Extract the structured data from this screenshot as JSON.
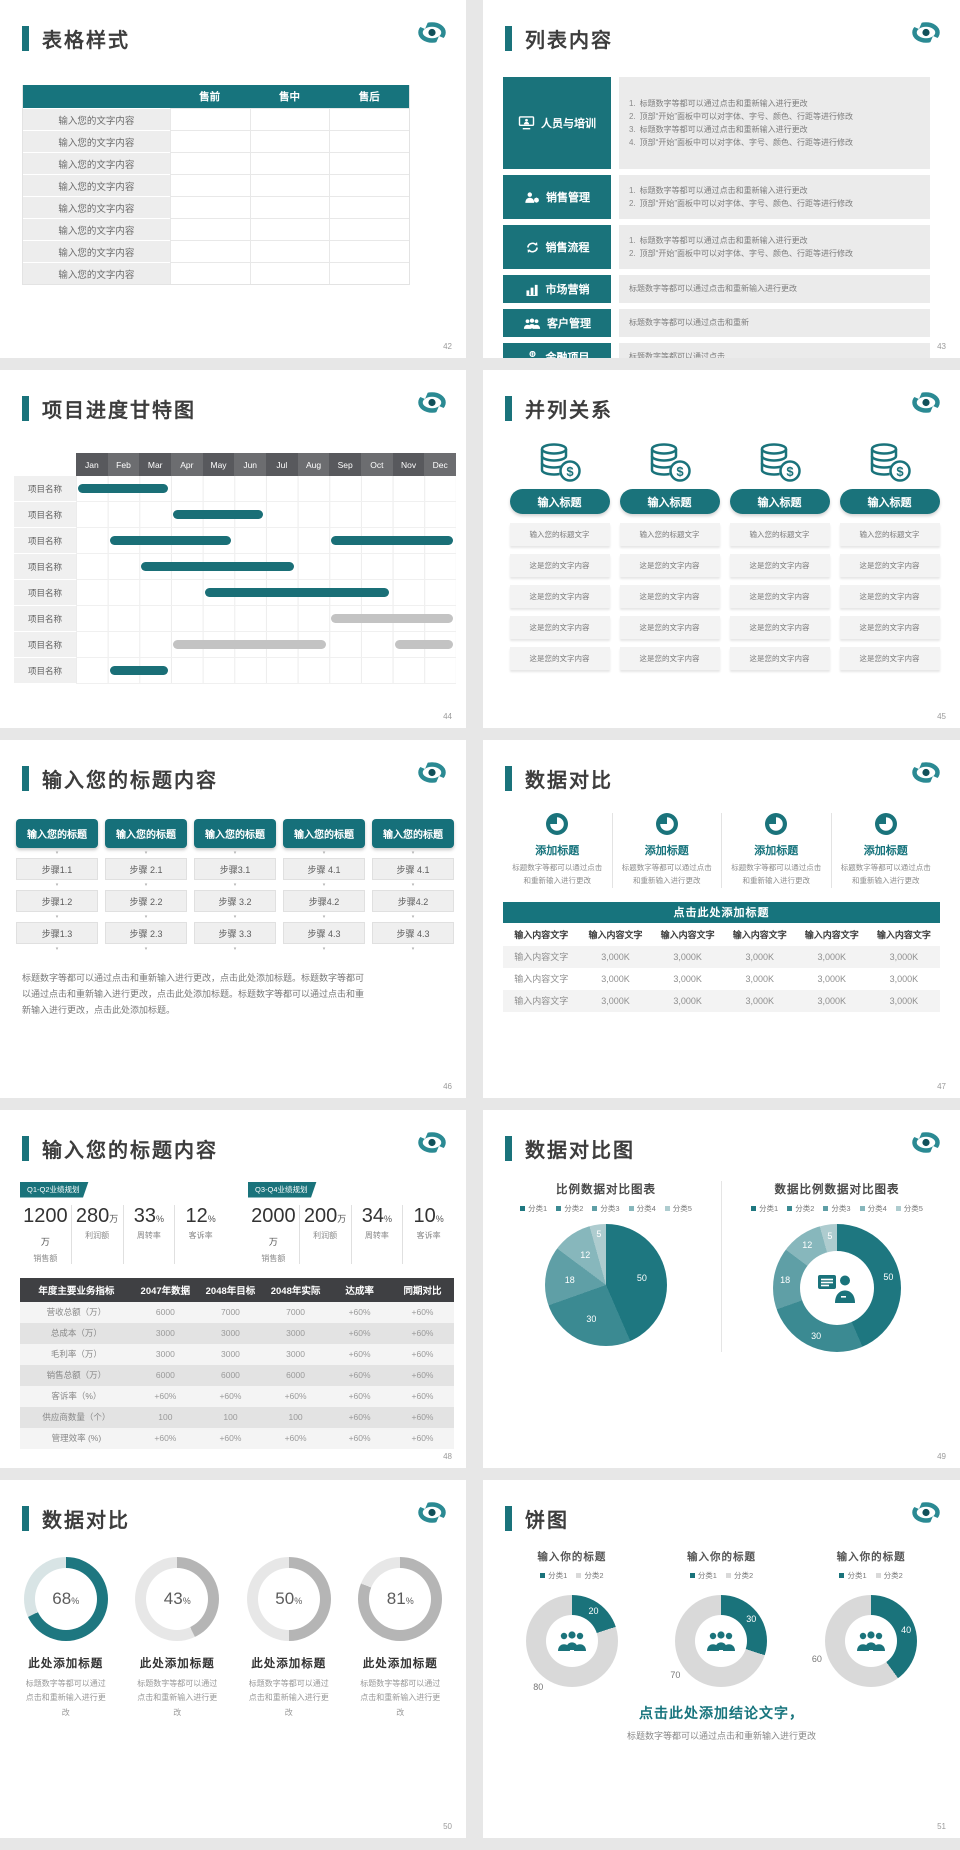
{
  "colors": {
    "accent": "#1a737b",
    "accent_dark": "#14616a",
    "table_head": "#17747d",
    "dark_head": "#3f4043",
    "month_a": "#58595d",
    "month_b": "#6c6d70",
    "bar_teal": "#1a6f77",
    "bar_gray": "#c3c3c3",
    "pie_palette": [
      "#1e7780",
      "#3b8a92",
      "#5f9fa6",
      "#87b7bc",
      "#aecccf"
    ],
    "donut_gray": "#d9d9d9",
    "gauge_active": "#1e7780",
    "gauge_active_track": "#d8e4e5",
    "gauge_idle": "#b5b5b5",
    "gauge_idle_track": "#e7e7e7"
  },
  "slides": {
    "s42": {
      "page": "42",
      "title": "表格样式",
      "table": {
        "headers": [
          "",
          "售前",
          "售中",
          "售后"
        ],
        "row_label": "输入您的文字内容",
        "row_count": 8
      }
    },
    "s43": {
      "page": "43",
      "title": "列表内容",
      "items": [
        {
          "icon": "training",
          "label": "人员与培训",
          "numbered": true,
          "lines": [
            "标题数字等都可以通过点击和重新输入进行更改",
            "顶部“开始”面板中可以对字体、字号、颜色、行距等进行修改",
            "标题数字等都可以通过点击和重新输入进行更改",
            "顶部“开始”面板中可以对字体、字号、颜色、行距等进行修改"
          ]
        },
        {
          "icon": "gear-person",
          "label": "销售管理",
          "numbered": true,
          "lines": [
            "标题数字等都可以通过点击和重新输入进行更改",
            "顶部“开始”面板中可以对字体、字号、颜色、行距等进行修改"
          ]
        },
        {
          "icon": "process",
          "label": "销售流程",
          "numbered": true,
          "lines": [
            "标题数字等都可以通过点击和重新输入进行更改",
            "顶部“开始”面板中可以对字体、字号、颜色、行距等进行修改"
          ]
        },
        {
          "icon": "bars",
          "label": "市场营销",
          "numbered": false,
          "lines": [
            "标题数字等都可以通过点击和重新输入进行更改"
          ]
        },
        {
          "icon": "group",
          "label": "客户管理",
          "numbered": false,
          "lines": [
            "标题数字等都可以通过点击和重新"
          ]
        },
        {
          "icon": "finance",
          "label": "金融项目",
          "numbered": false,
          "lines": [
            "标题数字等都可以通过点击"
          ]
        }
      ]
    },
    "s44": {
      "page": "44",
      "title": "项目进度甘特图",
      "chart_data": {
        "type": "gantt",
        "months": [
          "Jan",
          "Feb",
          "Mar",
          "Apr",
          "May",
          "Jun",
          "Jul",
          "Aug",
          "Sep",
          "Oct",
          "Nov",
          "Dec"
        ],
        "row_label": "项目名称",
        "rows": [
          {
            "bars": [
              [
                1,
                3,
                "t"
              ]
            ]
          },
          {
            "bars": [
              [
                4,
                6,
                "t"
              ]
            ]
          },
          {
            "bars": [
              [
                2,
                5,
                "t"
              ],
              [
                9,
                12,
                "t"
              ]
            ]
          },
          {
            "bars": [
              [
                3,
                7,
                "t"
              ]
            ]
          },
          {
            "bars": [
              [
                5,
                10,
                "t"
              ]
            ]
          },
          {
            "bars": [
              [
                9,
                12,
                "g"
              ]
            ]
          },
          {
            "bars": [
              [
                4,
                8,
                "g"
              ],
              [
                11,
                12,
                "g"
              ]
            ]
          },
          {
            "bars": [
              [
                2,
                3,
                "t"
              ]
            ]
          }
        ]
      }
    },
    "s45": {
      "page": "45",
      "title": "并列关系",
      "column_count": 4,
      "button": "输入标题",
      "boxes": [
        "输入您的标题文字",
        "这是您的文字内容",
        "这是您的文字内容",
        "这是您的文字内容",
        "这是您的文字内容"
      ]
    },
    "s46": {
      "page": "46",
      "title": "输入您的标题内容",
      "header": "输入您的标题",
      "columns": [
        [
          "步骤1.1",
          "步骤1.2",
          "步骤1.3"
        ],
        [
          "步骤 2.1",
          "步骤 2.2",
          "步骤 2.3"
        ],
        [
          "步骤3.1",
          "步骤 3.2",
          "步骤 3.3"
        ],
        [
          "步骤 4.1",
          "步骤4.2",
          "步骤 4.3"
        ],
        [
          "步骤 4.1",
          "步骤4.2",
          "步骤 4.3"
        ]
      ],
      "note": "标题数字等都可以通过点击和重新输入进行更改，点击此处添加标题。标题数字等都可以通过点击和重新输入进行更改，点击此处添加标题。标题数字等都可以通过点击和重新输入进行更改，点击此处添加标题。"
    },
    "s47": {
      "page": "47",
      "title": "数据对比",
      "feature_title": "添加标题",
      "feature_desc": "标题数字等都可以通过点击和重新输入进行更改",
      "feature_count": 4,
      "banner": "点击此处添加标题",
      "table": {
        "headers": [
          "输入内容文字",
          "输入内容文字",
          "输入内容文字",
          "输入内容文字",
          "输入内容文字",
          "输入内容文字"
        ],
        "rows": [
          [
            "输入内容文字",
            "3,000K",
            "3,000K",
            "3,000K",
            "3,000K",
            "3,000K"
          ],
          [
            "输入内容文字",
            "3,000K",
            "3,000K",
            "3,000K",
            "3,000K",
            "3,000K"
          ],
          [
            "输入内容文字",
            "3,000K",
            "3,000K",
            "3,000K",
            "3,000K",
            "3,000K"
          ]
        ]
      }
    },
    "s48": {
      "page": "48",
      "title": "输入您的标题内容",
      "groups": [
        {
          "tag": "Q1-Q2业绩规划",
          "stats": [
            {
              "value": "1200",
              "unit": "万",
              "label": "销售额"
            },
            {
              "value": "280",
              "unit": "万",
              "label": "利润额"
            },
            {
              "value": "33",
              "unit": "%",
              "label": "周转率"
            },
            {
              "value": "12",
              "unit": "%",
              "label": "客诉率"
            }
          ]
        },
        {
          "tag": "Q3-Q4业绩规划",
          "stats": [
            {
              "value": "2000",
              "unit": "万",
              "label": "销售额"
            },
            {
              "value": "200",
              "unit": "万",
              "label": "利润额"
            },
            {
              "value": "34",
              "unit": "%",
              "label": "周转率"
            },
            {
              "value": "10",
              "unit": "%",
              "label": "客诉率"
            }
          ]
        }
      ],
      "table": {
        "headers": [
          "年度主要业务指标",
          "2047年数据",
          "2048年目标",
          "2048年实际",
          "达成率",
          "同期对比"
        ],
        "rows": [
          [
            "营收总额（万）",
            "6000",
            "7000",
            "7000",
            "+60%",
            "+60%"
          ],
          [
            "总成本（万）",
            "3000",
            "3000",
            "3000",
            "+60%",
            "+60%"
          ],
          [
            "毛利率（万）",
            "3000",
            "3000",
            "3000",
            "+60%",
            "+60%"
          ],
          [
            "销售总额（万）",
            "6000",
            "6000",
            "6000",
            "+60%",
            "+60%"
          ],
          [
            "客诉率（%）",
            "+60%",
            "+60%",
            "+60%",
            "+60%",
            "+60%"
          ],
          [
            "供应商数量（个）",
            "100",
            "100",
            "100",
            "+60%",
            "+60%"
          ],
          [
            "管理效率 (%)",
            "+60%",
            "+60%",
            "+60%",
            "+60%",
            "+60%"
          ]
        ]
      }
    },
    "s49": {
      "page": "49",
      "title": "数据对比图",
      "chart_data": [
        {
          "type": "pie",
          "title": "比例数据对比图表",
          "legend": [
            "分类1",
            "分类2",
            "分类3",
            "分类4",
            "分类5"
          ],
          "values": [
            50,
            30,
            18,
            12,
            5
          ]
        },
        {
          "type": "donut",
          "title": "数据比例数据对比图表",
          "legend": [
            "分类1",
            "分类2",
            "分类3",
            "分类4",
            "分类5"
          ],
          "values": [
            50,
            30,
            18,
            12,
            5
          ],
          "center_icon": "presenter-icon"
        }
      ]
    },
    "s50": {
      "page": "50",
      "title": "数据对比",
      "item_title": "此处添加标题",
      "item_desc": "标题数字等都可以通过点击和重新输入进行更改",
      "chart_data": {
        "type": "donut-gauges",
        "values_pct": [
          68,
          43,
          50,
          81
        ],
        "active_index": 0
      }
    },
    "s51": {
      "page": "51",
      "title": "饼图",
      "donut_title": "输入你的标题",
      "legend": [
        "分类1",
        "分类2"
      ],
      "chart_data": {
        "type": "donut",
        "series": [
          {
            "values": [
              20,
              80
            ]
          },
          {
            "values": [
              30,
              70
            ]
          },
          {
            "values": [
              40,
              60
            ]
          }
        ],
        "teal_first": true
      },
      "conclusion": "点击此处添加结论文字，",
      "conclusion_desc": "标题数字等都可以通过点击和重新输入进行更改"
    }
  }
}
